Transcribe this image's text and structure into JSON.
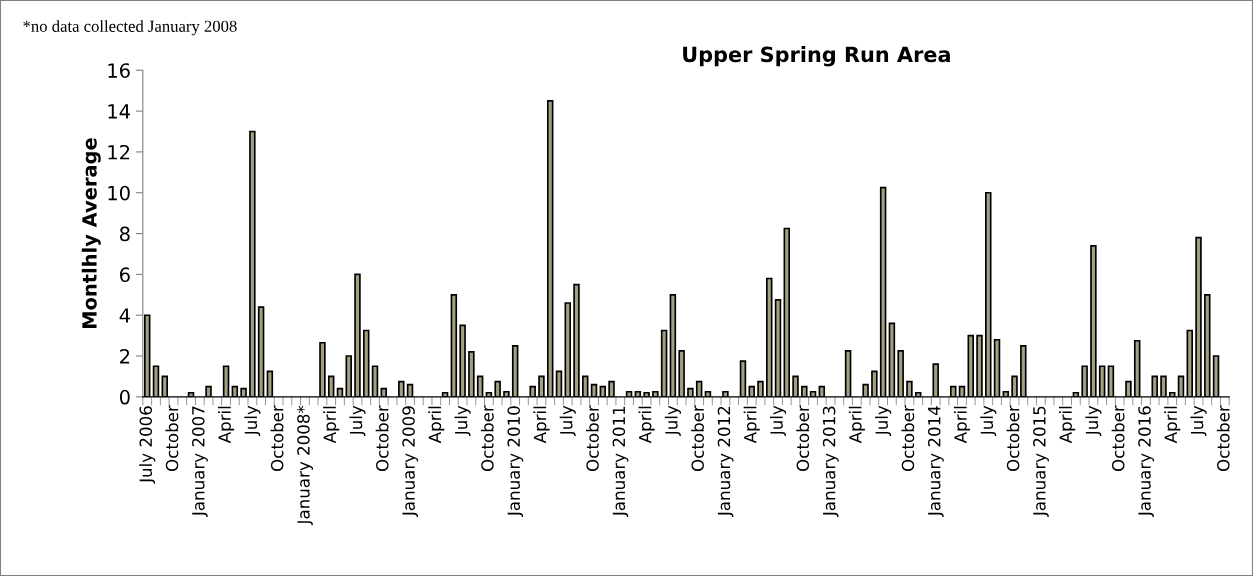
{
  "chart_data": {
    "type": "bar",
    "title": "Upper Spring Run Area",
    "ylabel": "Montlhly Average",
    "annotations": [
      "*no data collected January 2008"
    ],
    "categories": [
      "July 2006",
      null,
      null,
      "October",
      null,
      null,
      "January 2007",
      null,
      null,
      "April",
      null,
      null,
      "July",
      null,
      null,
      "October",
      null,
      null,
      "January 2008*",
      null,
      null,
      "April",
      null,
      null,
      "July",
      null,
      null,
      "October",
      null,
      null,
      "January 2009",
      null,
      null,
      "April",
      null,
      null,
      "July",
      null,
      null,
      "October",
      null,
      null,
      "January 2010",
      null,
      null,
      "April",
      null,
      null,
      "July",
      null,
      null,
      "October",
      null,
      null,
      "January 2011",
      null,
      null,
      "April",
      null,
      null,
      "July",
      null,
      null,
      "October",
      null,
      null,
      "January 2012",
      null,
      null,
      "April",
      null,
      null,
      "July",
      null,
      null,
      "October",
      null,
      null,
      "January 2013",
      null,
      null,
      "April",
      null,
      null,
      "July",
      null,
      null,
      "October",
      null,
      null,
      "January 2014",
      null,
      null,
      "April",
      null,
      null,
      "July",
      null,
      null,
      "October",
      null,
      null,
      "January 2015",
      null,
      null,
      "April",
      null,
      null,
      "July",
      null,
      null,
      "October",
      null,
      null,
      "January 2016",
      null,
      null,
      "April",
      null,
      null,
      "July",
      null,
      null,
      "October"
    ],
    "values": [
      4.0,
      1.5,
      1.0,
      0,
      0,
      0.2,
      0,
      0.5,
      0,
      1.5,
      0.5,
      0.4,
      13.0,
      4.4,
      1.25,
      0,
      0,
      0,
      null,
      0,
      2.65,
      1.0,
      0.4,
      2.0,
      6.0,
      3.25,
      1.5,
      0.4,
      0,
      0.75,
      0.6,
      0,
      0,
      0,
      0.2,
      5.0,
      3.5,
      2.2,
      1.0,
      0.2,
      0.75,
      0.25,
      2.5,
      0,
      0.5,
      1.0,
      14.5,
      1.25,
      4.6,
      5.5,
      1.0,
      0.6,
      0.5,
      0.75,
      0,
      0.25,
      0.25,
      0.2,
      0.25,
      3.25,
      5.0,
      2.25,
      0.4,
      0.75,
      0.25,
      0,
      0.25,
      0,
      1.75,
      0.5,
      0.75,
      5.8,
      4.75,
      8.25,
      1.0,
      0.5,
      0.25,
      0.5,
      0,
      0,
      2.25,
      0,
      0.6,
      1.25,
      10.25,
      3.6,
      2.25,
      0.75,
      0.2,
      0,
      1.6,
      0,
      0.5,
      0.5,
      3.0,
      3.0,
      10.0,
      2.8,
      0.25,
      1.0,
      2.5,
      0,
      0,
      0,
      0,
      0,
      0.2,
      1.5,
      7.4,
      1.5,
      1.5,
      0,
      0.75,
      2.75,
      0,
      1.0,
      1.0,
      0.2,
      1.0,
      3.25,
      7.8,
      5.0,
      2.0,
      0
    ],
    "color": "#a39f80",
    "ylim": [
      0,
      16
    ],
    "yticks": [
      0,
      2,
      4,
      6,
      8,
      10,
      12,
      14,
      16
    ],
    "grid": false,
    "legend": false
  }
}
